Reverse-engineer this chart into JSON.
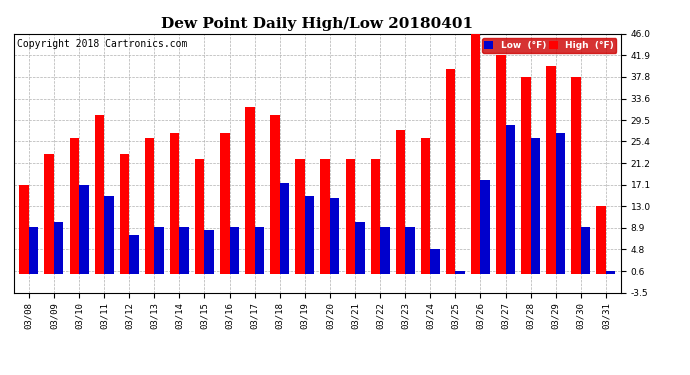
{
  "title": "Dew Point Daily High/Low 20180401",
  "copyright": "Copyright 2018 Cartronics.com",
  "dates": [
    "03/08",
    "03/09",
    "03/10",
    "03/11",
    "03/12",
    "03/13",
    "03/14",
    "03/15",
    "03/16",
    "03/17",
    "03/18",
    "03/19",
    "03/20",
    "03/21",
    "03/22",
    "03/23",
    "03/24",
    "03/25",
    "03/26",
    "03/27",
    "03/28",
    "03/29",
    "03/30",
    "03/31"
  ],
  "high_values": [
    17.1,
    23.0,
    26.0,
    30.5,
    23.0,
    26.0,
    27.0,
    22.0,
    27.0,
    32.0,
    30.5,
    22.0,
    22.0,
    22.0,
    22.0,
    27.5,
    26.0,
    39.2,
    46.0,
    41.9,
    37.8,
    39.9,
    37.8,
    13.0
  ],
  "low_values": [
    9.0,
    10.0,
    17.1,
    15.0,
    7.5,
    9.0,
    9.0,
    8.5,
    9.0,
    9.0,
    17.5,
    15.0,
    14.5,
    10.0,
    9.0,
    9.0,
    4.8,
    0.6,
    18.0,
    28.5,
    26.0,
    27.0,
    9.0,
    0.6
  ],
  "ylim": [
    -3.5,
    46.0
  ],
  "yticks": [
    -3.5,
    0.6,
    4.8,
    8.9,
    13.0,
    17.1,
    21.2,
    25.4,
    29.5,
    33.6,
    37.8,
    41.9,
    46.0
  ],
  "high_color": "#ff0000",
  "low_color": "#0000cc",
  "bg_color": "#ffffff",
  "grid_color": "#b0b0b0",
  "title_fontsize": 11,
  "copyright_fontsize": 7
}
